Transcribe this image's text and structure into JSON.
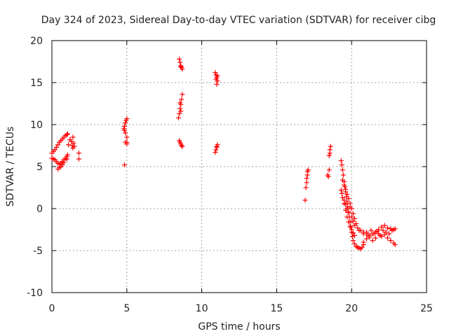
{
  "chart_data": {
    "type": "scatter",
    "title": "Day 324 of 2023, Sidereal Day-to-day VTEC variation (SDTVAR) for receiver cibg",
    "xlabel": "GPS time / hours",
    "ylabel": "SDTVAR / TECUs",
    "xlim": [
      0,
      25
    ],
    "ylim": [
      -10,
      20
    ],
    "xticks": [
      0,
      5,
      10,
      15,
      20,
      25
    ],
    "yticks": [
      -10,
      -5,
      0,
      5,
      10,
      15,
      20
    ],
    "grid": true,
    "marker": "+",
    "color": "#ff0000",
    "series": [
      {
        "name": "SDTVAR",
        "points": [
          [
            0.0,
            6.6
          ],
          [
            0.1,
            6.8
          ],
          [
            0.2,
            7.0
          ],
          [
            0.3,
            7.3
          ],
          [
            0.4,
            7.6
          ],
          [
            0.5,
            7.9
          ],
          [
            0.6,
            8.1
          ],
          [
            0.7,
            8.3
          ],
          [
            0.8,
            8.5
          ],
          [
            0.9,
            8.7
          ],
          [
            1.0,
            8.8
          ],
          [
            1.05,
            8.9
          ],
          [
            0.0,
            6.0
          ],
          [
            0.1,
            5.9
          ],
          [
            0.2,
            5.8
          ],
          [
            0.3,
            5.6
          ],
          [
            0.4,
            5.4
          ],
          [
            0.5,
            5.3
          ],
          [
            0.6,
            5.4
          ],
          [
            0.7,
            5.6
          ],
          [
            0.8,
            5.8
          ],
          [
            0.9,
            6.0
          ],
          [
            1.0,
            6.2
          ],
          [
            1.05,
            6.4
          ],
          [
            0.4,
            4.7
          ],
          [
            0.5,
            4.9
          ],
          [
            0.6,
            5.0
          ],
          [
            0.7,
            5.2
          ],
          [
            0.8,
            5.5
          ],
          [
            1.0,
            5.9
          ],
          [
            1.1,
            7.6
          ],
          [
            1.2,
            8.2
          ],
          [
            1.3,
            8.0
          ],
          [
            1.35,
            7.5
          ],
          [
            1.4,
            7.2
          ],
          [
            1.45,
            7.8
          ],
          [
            1.5,
            7.4
          ],
          [
            1.4,
            8.5
          ],
          [
            1.8,
            6.6
          ],
          [
            1.8,
            5.9
          ],
          [
            4.8,
            9.5
          ],
          [
            4.85,
            9.8
          ],
          [
            4.9,
            10.2
          ],
          [
            4.95,
            10.5
          ],
          [
            5.0,
            10.7
          ],
          [
            4.85,
            9.3
          ],
          [
            4.9,
            9.0
          ],
          [
            5.0,
            8.5
          ],
          [
            5.0,
            7.9
          ],
          [
            5.0,
            7.7
          ],
          [
            4.9,
            7.9
          ],
          [
            4.85,
            5.2
          ],
          [
            8.5,
            17.8
          ],
          [
            8.55,
            17.4
          ],
          [
            8.6,
            17.0
          ],
          [
            8.65,
            16.8
          ],
          [
            8.7,
            16.6
          ],
          [
            8.6,
            16.9
          ],
          [
            8.45,
            10.8
          ],
          [
            8.5,
            11.3
          ],
          [
            8.55,
            11.9
          ],
          [
            8.6,
            12.4
          ],
          [
            8.65,
            13.0
          ],
          [
            8.7,
            13.6
          ],
          [
            8.55,
            12.6
          ],
          [
            8.6,
            11.6
          ],
          [
            8.5,
            8.1
          ],
          [
            8.55,
            7.9
          ],
          [
            8.6,
            7.7
          ],
          [
            8.65,
            7.5
          ],
          [
            8.7,
            7.4
          ],
          [
            10.9,
            16.2
          ],
          [
            10.95,
            15.9
          ],
          [
            11.0,
            15.6
          ],
          [
            11.05,
            15.2
          ],
          [
            11.0,
            14.8
          ],
          [
            10.95,
            15.4
          ],
          [
            11.05,
            15.8
          ],
          [
            10.9,
            6.7
          ],
          [
            10.95,
            7.0
          ],
          [
            11.0,
            7.3
          ],
          [
            11.05,
            7.6
          ],
          [
            11.0,
            7.4
          ],
          [
            16.9,
            1.0
          ],
          [
            16.95,
            2.5
          ],
          [
            17.0,
            3.1
          ],
          [
            17.0,
            3.6
          ],
          [
            17.05,
            4.0
          ],
          [
            17.05,
            4.4
          ],
          [
            17.1,
            4.6
          ],
          [
            18.4,
            4.0
          ],
          [
            18.45,
            3.8
          ],
          [
            18.5,
            4.6
          ],
          [
            18.5,
            6.3
          ],
          [
            18.55,
            6.6
          ],
          [
            18.55,
            7.0
          ],
          [
            18.6,
            7.4
          ],
          [
            19.3,
            5.7
          ],
          [
            19.35,
            5.2
          ],
          [
            19.4,
            4.6
          ],
          [
            19.45,
            4.0
          ],
          [
            19.5,
            3.2
          ],
          [
            19.55,
            2.6
          ],
          [
            19.6,
            2.0
          ],
          [
            19.65,
            1.4
          ],
          [
            19.7,
            0.8
          ],
          [
            19.75,
            0.2
          ],
          [
            19.8,
            -0.4
          ],
          [
            19.85,
            -1.0
          ],
          [
            19.9,
            -1.6
          ],
          [
            19.95,
            -2.2
          ],
          [
            20.0,
            -2.8
          ],
          [
            20.05,
            -3.3
          ],
          [
            20.1,
            -3.8
          ],
          [
            20.2,
            -4.2
          ],
          [
            20.3,
            -4.5
          ],
          [
            20.4,
            -4.6
          ],
          [
            20.5,
            -4.7
          ],
          [
            20.6,
            -4.8
          ],
          [
            20.7,
            -4.6
          ],
          [
            20.8,
            -4.3
          ],
          [
            19.3,
            2.2
          ],
          [
            19.35,
            1.8
          ],
          [
            19.4,
            1.3
          ],
          [
            19.5,
            0.6
          ],
          [
            19.6,
            -0.2
          ],
          [
            19.7,
            -1.0
          ],
          [
            19.8,
            -1.6
          ],
          [
            19.9,
            -2.1
          ],
          [
            20.0,
            -2.5
          ],
          [
            20.1,
            -2.9
          ],
          [
            20.2,
            -3.2
          ],
          [
            19.4,
            3.4
          ],
          [
            19.5,
            2.8
          ],
          [
            19.6,
            2.3
          ],
          [
            19.7,
            1.7
          ],
          [
            19.8,
            1.2
          ],
          [
            19.9,
            0.6
          ],
          [
            20.0,
            0.0
          ],
          [
            20.1,
            -0.6
          ],
          [
            20.2,
            -1.2
          ],
          [
            20.3,
            -1.8
          ],
          [
            20.4,
            -2.3
          ],
          [
            20.5,
            -2.6
          ],
          [
            19.5,
            1.0
          ],
          [
            19.6,
            0.5
          ],
          [
            19.7,
            0.0
          ],
          [
            19.8,
            -0.5
          ],
          [
            19.9,
            0.2
          ],
          [
            20.0,
            -1.0
          ],
          [
            20.1,
            -1.5
          ],
          [
            20.2,
            -2.0
          ],
          [
            20.6,
            -2.6
          ],
          [
            20.8,
            -2.8
          ],
          [
            21.0,
            -3.0
          ],
          [
            21.2,
            -3.2
          ],
          [
            21.4,
            -3.0
          ],
          [
            21.6,
            -2.8
          ],
          [
            21.8,
            -2.5
          ],
          [
            22.0,
            -2.2
          ],
          [
            22.2,
            -2.0
          ],
          [
            22.4,
            -2.3
          ],
          [
            22.6,
            -2.4
          ],
          [
            22.8,
            -2.5
          ],
          [
            22.9,
            -2.4
          ],
          [
            20.8,
            -4.0
          ],
          [
            21.0,
            -3.6
          ],
          [
            21.2,
            -3.4
          ],
          [
            21.4,
            -3.8
          ],
          [
            21.6,
            -3.5
          ],
          [
            21.8,
            -3.0
          ],
          [
            22.0,
            -3.3
          ],
          [
            22.2,
            -3.1
          ],
          [
            22.4,
            -3.5
          ],
          [
            22.6,
            -3.8
          ],
          [
            22.8,
            -4.1
          ],
          [
            22.9,
            -4.3
          ],
          [
            20.8,
            -3.0
          ],
          [
            21.0,
            -2.8
          ],
          [
            21.1,
            -3.2
          ],
          [
            21.3,
            -2.6
          ],
          [
            21.5,
            -3.0
          ],
          [
            21.7,
            -2.7
          ],
          [
            21.9,
            -3.2
          ],
          [
            22.1,
            -2.6
          ],
          [
            22.3,
            -2.8
          ],
          [
            22.5,
            -3.0
          ],
          [
            22.7,
            -2.6
          ]
        ]
      }
    ]
  }
}
